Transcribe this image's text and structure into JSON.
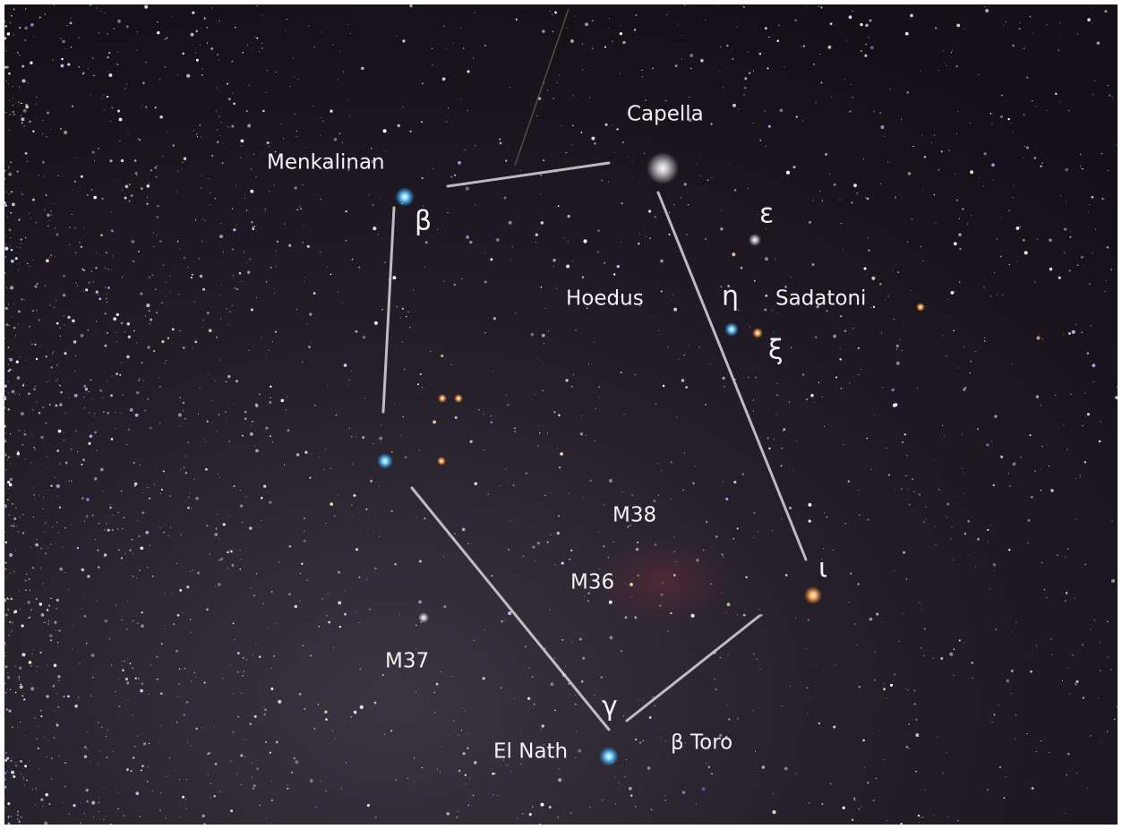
{
  "labels": {
    "capella": "Capella",
    "menkalinan": "Menkalinan",
    "beta": "β",
    "epsilon": "ε",
    "hoedus": "Hoedus",
    "eta": "η",
    "sadatoni": "Sadatoni",
    "xi": "ξ",
    "m38": "M38",
    "m36": "M36",
    "iota": "ι",
    "m37": "M37",
    "gamma": "γ",
    "el_nath": "El Nath",
    "beta_tauri": "β Toro"
  }
}
